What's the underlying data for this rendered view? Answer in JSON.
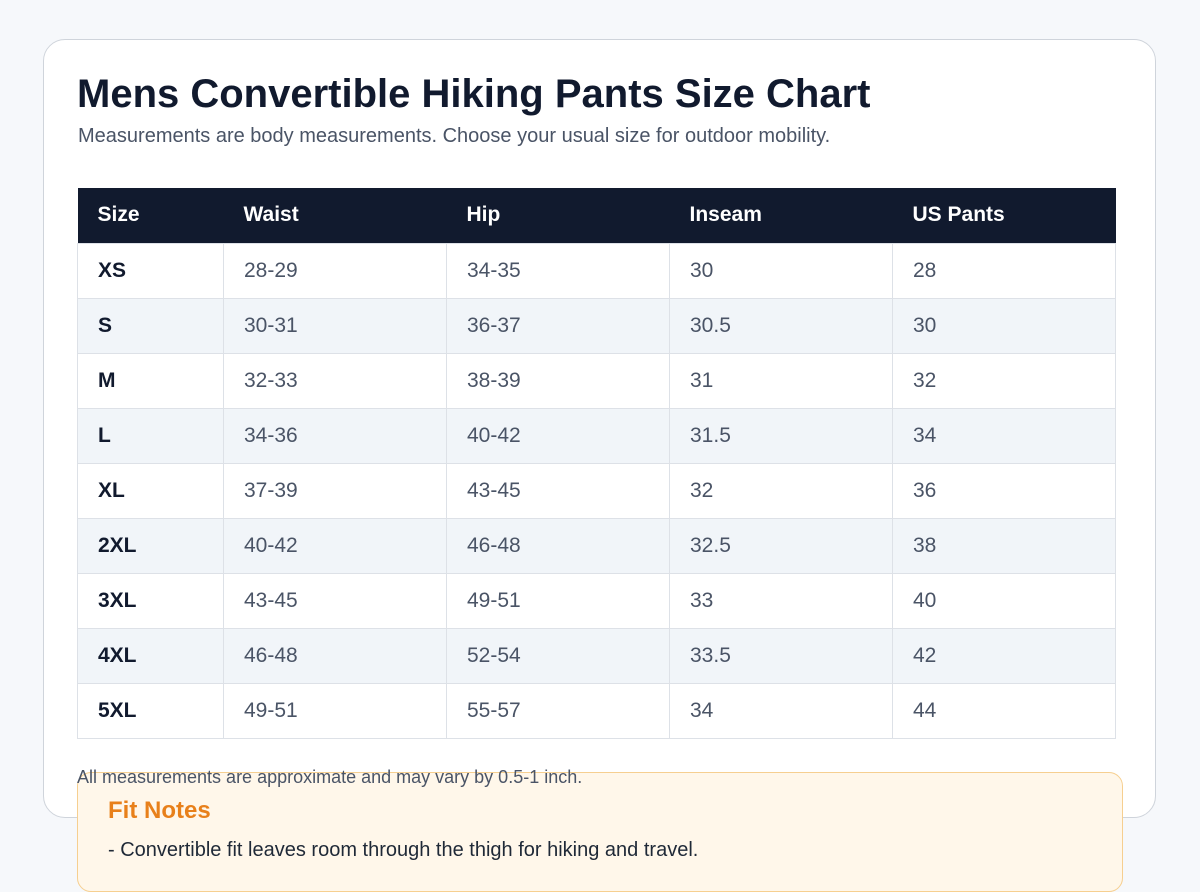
{
  "page": {
    "title": "Mens Convertible Hiking Pants Size Chart",
    "subtitle": "Measurements are body measurements. Choose your usual size for outdoor mobility."
  },
  "table": {
    "headers": [
      "Size",
      "Waist",
      "Hip",
      "Inseam",
      "US Pants"
    ],
    "rows": [
      [
        "XS",
        "28-29",
        "34-35",
        "30",
        "28"
      ],
      [
        "S",
        "30-31",
        "36-37",
        "30.5",
        "30"
      ],
      [
        "M",
        "32-33",
        "38-39",
        "31",
        "32"
      ],
      [
        "L",
        "34-36",
        "40-42",
        "31.5",
        "34"
      ],
      [
        "XL",
        "37-39",
        "43-45",
        "32",
        "36"
      ],
      [
        "2XL",
        "40-42",
        "46-48",
        "32.5",
        "38"
      ],
      [
        "3XL",
        "43-45",
        "49-51",
        "33",
        "40"
      ],
      [
        "4XL",
        "46-48",
        "52-54",
        "33.5",
        "42"
      ],
      [
        "5XL",
        "49-51",
        "55-57",
        "34",
        "44"
      ]
    ]
  },
  "footnote": "All measurements are approximate and may vary by 0.5-1 inch.",
  "fit_notes": {
    "title": "Fit Notes",
    "items": [
      "- Convertible fit leaves room through the thigh for hiking and travel."
    ]
  },
  "colors": {
    "header_bg": "#111a2e",
    "accent": "#e8801a",
    "notes_bg": "#fff7ea"
  }
}
